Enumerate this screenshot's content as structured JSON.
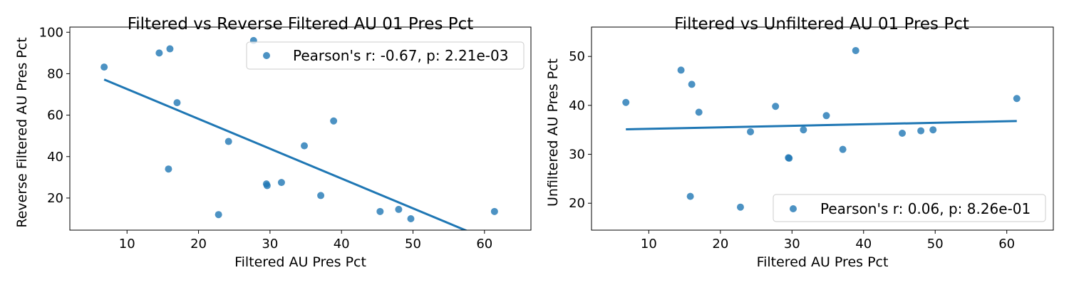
{
  "chart_data": [
    {
      "type": "scatter",
      "title": "Filtered vs Reverse Filtered AU 01 Pres Pct",
      "xlabel": "Filtered AU Pres Pct",
      "ylabel": "Reverse Filtered AU Pres Pct",
      "xlim": [
        2,
        66.5
      ],
      "ylim": [
        4.5,
        102.5
      ],
      "xticks": [
        10,
        20,
        30,
        40,
        50,
        60
      ],
      "yticks": [
        20,
        40,
        60,
        80,
        100
      ],
      "legend_label": "Pearson's r: -0.67, p: 2.21e-03",
      "legend_loc": "upper right",
      "grid": false,
      "point_color": "#1f77b4",
      "line_color": "#1f77b4",
      "points": [
        {
          "x": 6.8,
          "y": 83.2
        },
        {
          "x": 14.5,
          "y": 90.0
        },
        {
          "x": 16.0,
          "y": 92.0
        },
        {
          "x": 15.8,
          "y": 34.0
        },
        {
          "x": 17.0,
          "y": 66.0
        },
        {
          "x": 22.8,
          "y": 12.0
        },
        {
          "x": 24.2,
          "y": 47.3
        },
        {
          "x": 27.7,
          "y": 96.0
        },
        {
          "x": 29.5,
          "y": 26.8
        },
        {
          "x": 29.6,
          "y": 26.0
        },
        {
          "x": 31.6,
          "y": 27.5
        },
        {
          "x": 34.8,
          "y": 45.2
        },
        {
          "x": 37.1,
          "y": 21.2
        },
        {
          "x": 38.9,
          "y": 57.2
        },
        {
          "x": 45.4,
          "y": 13.5
        },
        {
          "x": 48.0,
          "y": 14.5
        },
        {
          "x": 49.7,
          "y": 10.0
        },
        {
          "x": 61.4,
          "y": 13.5
        }
      ],
      "fit_line": {
        "x": [
          6.8,
          61.4
        ],
        "y": [
          77.2,
          -1.4
        ]
      }
    },
    {
      "type": "scatter",
      "title": "Filtered vs Unfiltered AU 01 Pres Pct",
      "xlabel": "Filtered AU Pres Pct",
      "ylabel": "Unfiltered AU Pres Pct",
      "xlim": [
        2,
        66.5
      ],
      "ylim": [
        14.5,
        56
      ],
      "xticks": [
        10,
        20,
        30,
        40,
        50,
        60
      ],
      "yticks": [
        20,
        30,
        40,
        50
      ],
      "legend_label": "Pearson's r: 0.06, p: 8.26e-01",
      "legend_loc": "lower right",
      "grid": false,
      "point_color": "#1f77b4",
      "line_color": "#1f77b4",
      "points": [
        {
          "x": 6.8,
          "y": 40.6
        },
        {
          "x": 14.5,
          "y": 47.2
        },
        {
          "x": 16.0,
          "y": 44.3
        },
        {
          "x": 15.8,
          "y": 21.4
        },
        {
          "x": 17.0,
          "y": 38.6
        },
        {
          "x": 22.8,
          "y": 19.2
        },
        {
          "x": 24.2,
          "y": 34.6
        },
        {
          "x": 27.7,
          "y": 39.8
        },
        {
          "x": 29.5,
          "y": 29.3
        },
        {
          "x": 29.6,
          "y": 29.2
        },
        {
          "x": 31.6,
          "y": 35.0
        },
        {
          "x": 34.8,
          "y": 37.9
        },
        {
          "x": 37.1,
          "y": 31.0
        },
        {
          "x": 38.9,
          "y": 51.2
        },
        {
          "x": 45.4,
          "y": 34.3
        },
        {
          "x": 48.0,
          "y": 34.8
        },
        {
          "x": 49.7,
          "y": 35.0
        },
        {
          "x": 61.4,
          "y": 41.4
        }
      ],
      "fit_line": {
        "x": [
          6.8,
          61.4
        ],
        "y": [
          35.1,
          36.8
        ]
      }
    }
  ]
}
